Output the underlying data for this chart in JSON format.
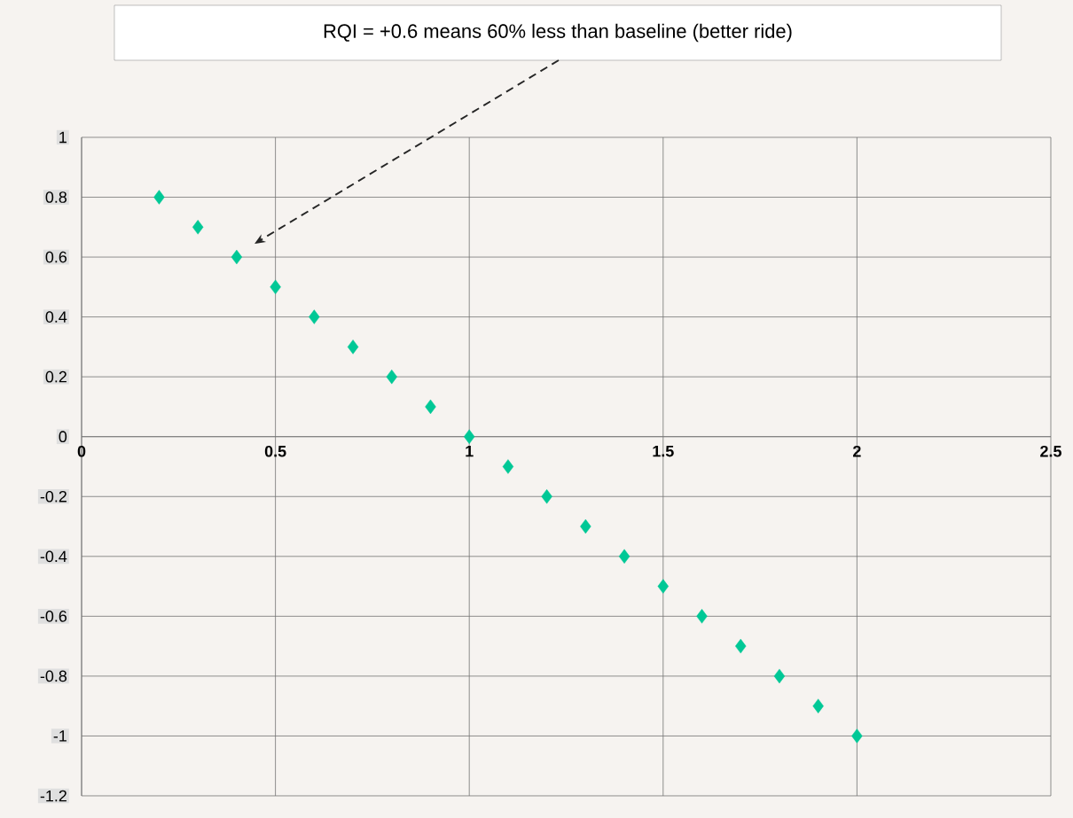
{
  "chart_data": {
    "type": "scatter",
    "x": [
      0.2,
      0.3,
      0.4,
      0.5,
      0.6,
      0.7,
      0.8,
      0.9,
      1.0,
      1.1,
      1.2,
      1.3,
      1.4,
      1.5,
      1.6,
      1.7,
      1.8,
      1.9,
      2.0
    ],
    "values": [
      0.8,
      0.7,
      0.6,
      0.5,
      0.4,
      0.3,
      0.2,
      0.1,
      0.0,
      -0.1,
      -0.2,
      -0.3,
      -0.4,
      -0.5,
      -0.6,
      -0.7,
      -0.8,
      -0.9,
      -1.0
    ],
    "color": "#00c896",
    "marker": "diamond",
    "xlim": [
      0,
      2.5
    ],
    "xticks": [
      0,
      0.5,
      1,
      1.5,
      2,
      2.5
    ],
    "ylim": [
      -1.2,
      1
    ],
    "yticks": [
      -1.2,
      -1,
      -0.8,
      -0.6,
      -0.4,
      -0.2,
      0,
      0.2,
      0.4,
      0.6,
      0.8,
      1
    ],
    "grid": true,
    "annotations": [
      "RQI = +0.6 means 60% less than baseline (better ride)"
    ]
  }
}
